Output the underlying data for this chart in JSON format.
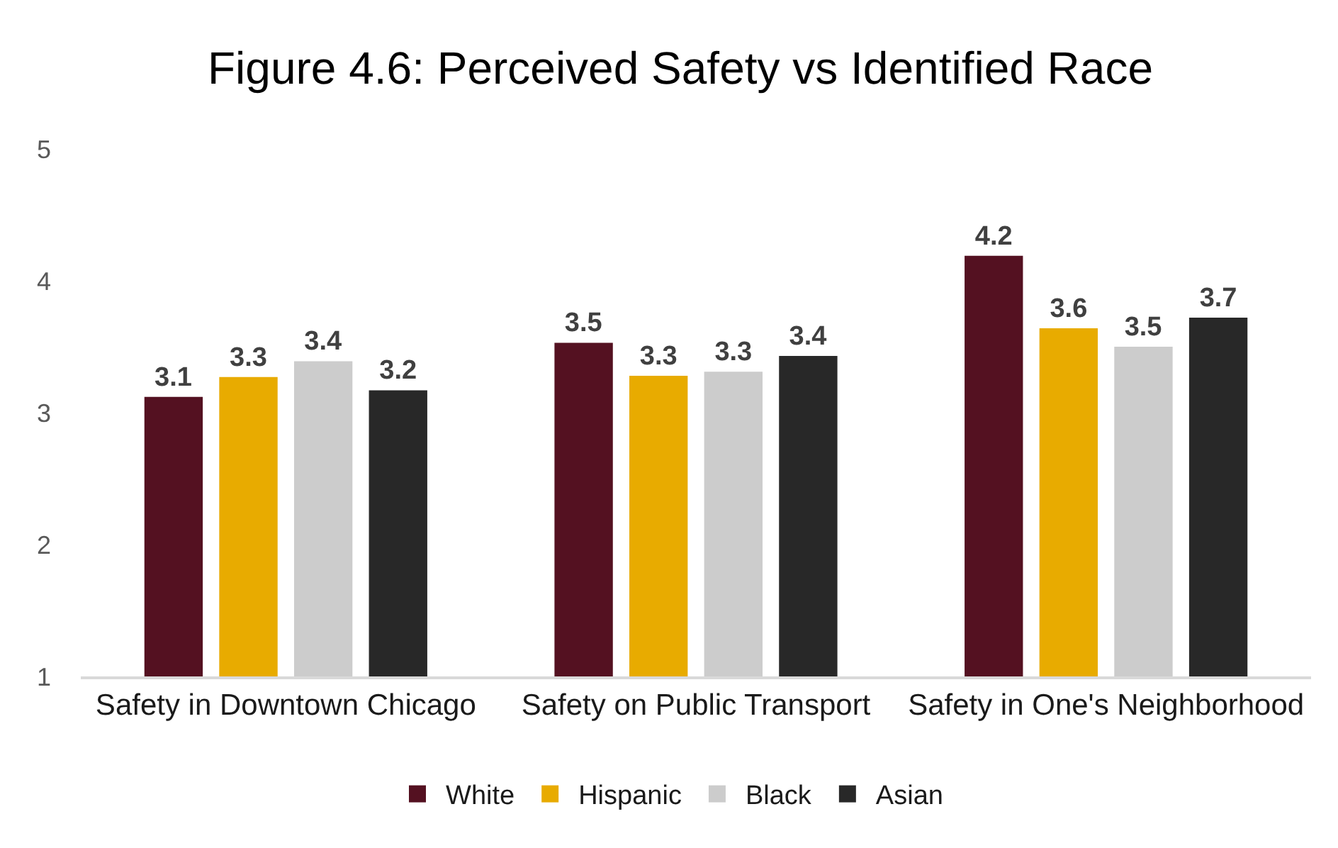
{
  "chart_data": {
    "type": "bar",
    "title": "Figure 4.6: Perceived Safety vs Identified Race",
    "categories": [
      "Safety in Downtown Chicago",
      "Safety on Public Transport",
      "Safety in One's Neighborhood"
    ],
    "series": [
      {
        "name": "White",
        "color": "#541121",
        "values": [
          3.12,
          3.53,
          4.19
        ],
        "value_labels": [
          "3.1",
          "3.5",
          "4.2"
        ]
      },
      {
        "name": "Hispanic",
        "color": "#e8ab00",
        "values": [
          3.27,
          3.28,
          3.64
        ],
        "value_labels": [
          "3.3",
          "3.3",
          "3.6"
        ]
      },
      {
        "name": "Black",
        "color": "#cccccc",
        "values": [
          3.39,
          3.31,
          3.5
        ],
        "value_labels": [
          "3.4",
          "3.3",
          "3.5"
        ]
      },
      {
        "name": "Asian",
        "color": "#282828",
        "values": [
          3.17,
          3.43,
          3.72
        ],
        "value_labels": [
          "3.2",
          "3.4",
          "3.7"
        ]
      }
    ],
    "ylim": [
      1,
      5
    ],
    "yticks": [
      1,
      2,
      3,
      4,
      5
    ],
    "grid": false,
    "legend": "bottom"
  }
}
